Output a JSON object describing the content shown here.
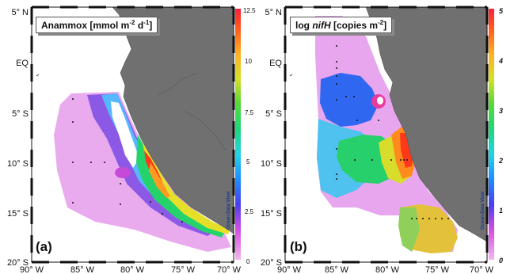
{
  "panels": [
    {
      "title": "Anammox [mmol m",
      "title_sup1": "-2",
      "title_mid": " d",
      "title_sup2": "-1",
      "title_end": "]",
      "panel_label": "(a)",
      "watermark": "Ocean Data View",
      "lat_labels": [
        "5° N",
        "EQ",
        "5° S",
        "10° S",
        "15° S",
        "20° S"
      ],
      "lon_labels": [
        "90° W",
        "85° W",
        "80° W",
        "75° W",
        "70° W"
      ],
      "colorbar_labels": [
        "12.5",
        "10",
        "7.5",
        "5",
        "2.5",
        "0"
      ]
    },
    {
      "title_prefix": "log ",
      "title_gene": "nifH",
      "title_suffix": " [copies m",
      "title_sup": "-2",
      "title_end": "]",
      "panel_label": "(b)",
      "watermark": "Ocean Data View",
      "lat_labels": [
        "5° N",
        "EQ",
        "5° S",
        "10° S",
        "15° S",
        "20° S"
      ],
      "lon_labels": [
        "90° W",
        "85° W",
        "80° W",
        "75° W",
        "70° W"
      ],
      "colorbar_labels": [
        "5",
        "4",
        "3",
        "2",
        "1",
        "0"
      ]
    }
  ],
  "colors": {
    "land": "#707070",
    "ocean": "#ffffff",
    "scale_low": "#f2b7ef",
    "scale_mid": "#1fd36a",
    "scale_high": "#ff1a1a"
  }
}
